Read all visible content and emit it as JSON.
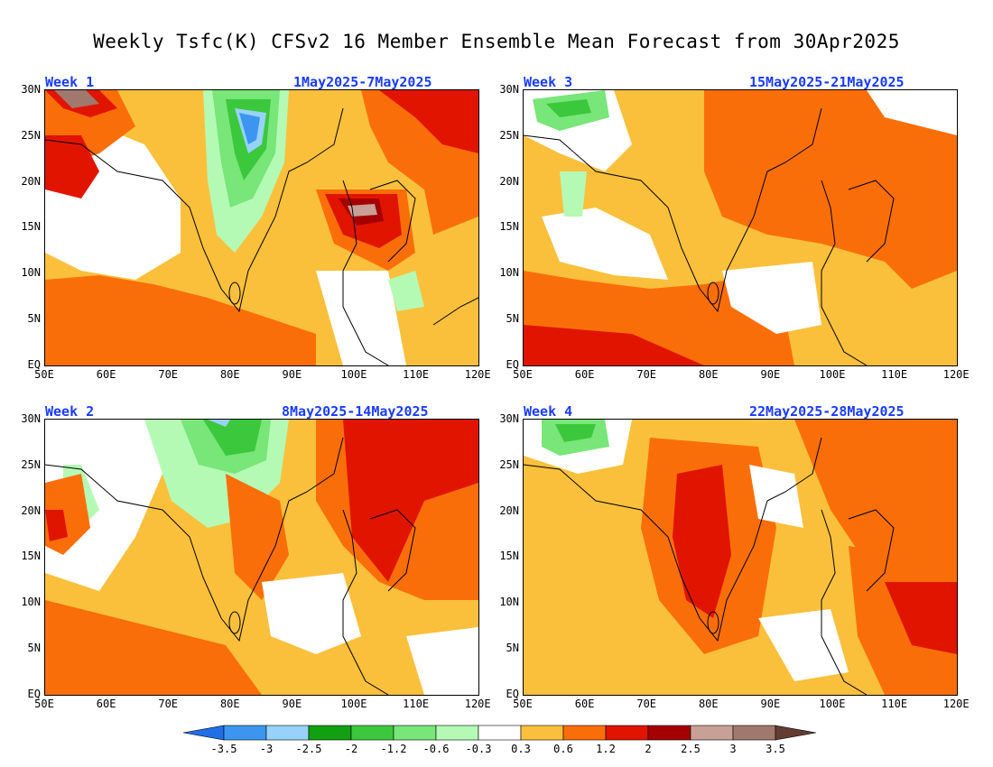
{
  "title": "Weekly Tsfc(K) CFSv2 16 Member Ensemble Mean Forecast from 30Apr2025",
  "panels": [
    {
      "week": "Week 1",
      "dates": "1May2025-7May2025"
    },
    {
      "week": "Week 3",
      "dates": "15May2025-21May2025"
    },
    {
      "week": "Week 2",
      "dates": "8May2025-14May2025"
    },
    {
      "week": "Week 4",
      "dates": "22May2025-28May2025"
    }
  ],
  "lat_labels": [
    "30N",
    "25N",
    "20N",
    "15N",
    "10N",
    "5N",
    "EQ"
  ],
  "lon_labels": [
    "50E",
    "60E",
    "70E",
    "80E",
    "90E",
    "100E",
    "110E",
    "120E"
  ],
  "colorbar": {
    "ticks": [
      "-3.5",
      "-3",
      "-2.5",
      "-2",
      "-1.2",
      "-0.6",
      "-0.3",
      "0.3",
      "0.6",
      "1.2",
      "2",
      "2.5",
      "3",
      "3.5"
    ],
    "colors": [
      "#1e6ee6",
      "#3c96f0",
      "#96d2fa",
      "#10a010",
      "#3cc83c",
      "#78e678",
      "#b4fab4",
      "#ffffff",
      "#fac03c",
      "#fa6e0a",
      "#e11400",
      "#a50000",
      "#c8a096",
      "#a0786e",
      "#643c32"
    ]
  }
}
